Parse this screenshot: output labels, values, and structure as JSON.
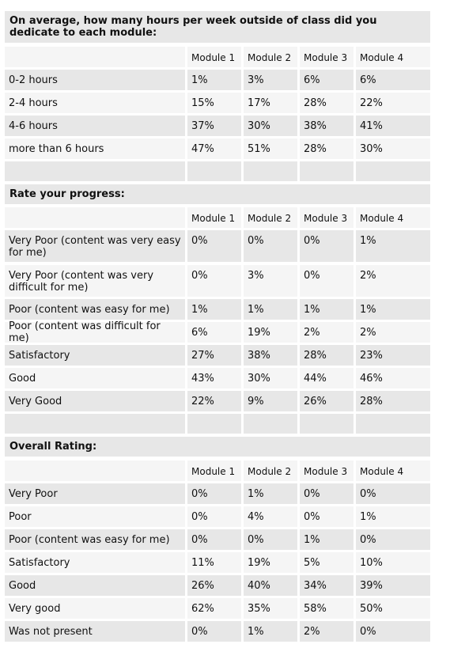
{
  "columns": [
    "Module 1",
    "Module 2",
    "Module 3",
    "Module 4"
  ],
  "colors": {
    "shade": "#e7e7e7",
    "light": "#f5f5f5",
    "border": "#ffffff",
    "text": "#111111"
  },
  "sections": [
    {
      "title": "On average, how many hours per week outside of class did you dedicate to each module:",
      "rows": [
        {
          "label": "0-2 hours",
          "values": [
            "1%",
            "3%",
            "6%",
            "6%"
          ]
        },
        {
          "label": "2-4 hours",
          "values": [
            "15%",
            "17%",
            "28%",
            "22%"
          ]
        },
        {
          "label": "4-6 hours",
          "values": [
            "37%",
            "30%",
            "38%",
            "41%"
          ]
        },
        {
          "label": "more than 6 hours",
          "values": [
            "47%",
            "51%",
            "28%",
            "30%"
          ]
        }
      ]
    },
    {
      "title": "Rate your progress:",
      "rows": [
        {
          "label": "Very Poor (content was very easy for me)",
          "values": [
            "0%",
            "0%",
            "0%",
            "1%"
          ]
        },
        {
          "label": "Very Poor  (content was very difficult for me)",
          "values": [
            "0%",
            "3%",
            "0%",
            "2%"
          ]
        },
        {
          "label": "Poor (content was easy for me)",
          "values": [
            "1%",
            "1%",
            "1%",
            "1%"
          ]
        },
        {
          "label": "Poor (content was difficult for me)",
          "values": [
            "6%",
            "19%",
            "2%",
            "2%"
          ]
        },
        {
          "label": "Satisfactory",
          "values": [
            "27%",
            "38%",
            "28%",
            "23%"
          ]
        },
        {
          "label": "Good",
          "values": [
            "43%",
            "30%",
            "44%",
            "46%"
          ]
        },
        {
          "label": "Very Good",
          "values": [
            "22%",
            "9%",
            "26%",
            "28%"
          ]
        }
      ]
    },
    {
      "title": "Overall Rating:",
      "rows": [
        {
          "label": "Very Poor",
          "values": [
            "0%",
            "1%",
            "0%",
            "0%"
          ]
        },
        {
          "label": "Poor",
          "values": [
            "0%",
            "4%",
            "0%",
            "1%"
          ]
        },
        {
          "label": "Poor (content was easy for me)",
          "values": [
            "0%",
            "0%",
            "1%",
            "0%"
          ]
        },
        {
          "label": "Satisfactory",
          "values": [
            "11%",
            "19%",
            "5%",
            "10%"
          ]
        },
        {
          "label": "Good",
          "values": [
            "26%",
            "40%",
            "34%",
            "39%"
          ]
        },
        {
          "label": "Very good",
          "values": [
            "62%",
            "35%",
            "58%",
            "50%"
          ]
        },
        {
          "label": "Was not present",
          "values": [
            "0%",
            "1%",
            "2%",
            "0%"
          ]
        }
      ]
    }
  ]
}
